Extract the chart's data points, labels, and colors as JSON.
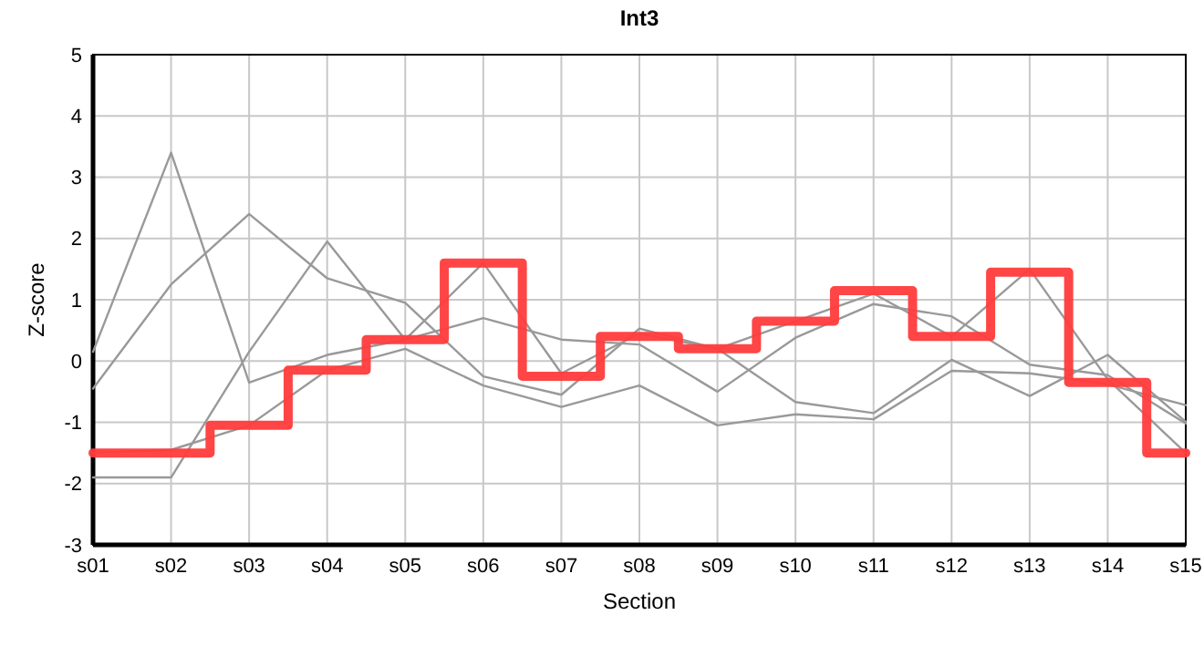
{
  "chart_data": {
    "type": "line",
    "title": "Int3",
    "xlabel": "Section",
    "ylabel": "Z-score",
    "categories": [
      "s01",
      "s02",
      "s03",
      "s04",
      "s05",
      "s06",
      "s07",
      "s08",
      "s09",
      "s10",
      "s11",
      "s12",
      "s13",
      "s14",
      "s15"
    ],
    "series": [
      {
        "color": "#999999",
        "values": [
          0.15,
          3.4,
          -0.35,
          0.1,
          0.35,
          0.7,
          0.35,
          0.27,
          -0.5,
          0.38,
          0.93,
          0.73,
          -0.06,
          -0.23,
          -1.02
        ]
      },
      {
        "color": "#999999",
        "values": [
          -0.45,
          1.25,
          2.4,
          1.35,
          0.95,
          -0.25,
          -0.55,
          0.53,
          0.2,
          -0.67,
          -0.85,
          0.02,
          -0.57,
          0.1,
          -0.99
        ]
      },
      {
        "color": "#999999",
        "values": [
          -1.9,
          -1.9,
          0.15,
          1.95,
          0.35,
          1.6,
          -0.2,
          0.45,
          0.2,
          0.65,
          1.1,
          0.4,
          1.5,
          -0.3,
          -1.5
        ]
      },
      {
        "color": "#999999",
        "values": [
          -1.5,
          -1.45,
          -1.05,
          -0.15,
          0.2,
          -0.4,
          -0.75,
          -0.4,
          -1.05,
          -0.87,
          -0.95,
          -0.16,
          -0.2,
          -0.38,
          -0.72
        ]
      },
      {
        "type": "step",
        "color": "#ff3b3b",
        "values": [
          -1.5,
          -1.5,
          -1.05,
          -0.15,
          0.35,
          1.6,
          -0.25,
          0.4,
          0.2,
          0.65,
          1.15,
          0.4,
          1.45,
          -0.35,
          -1.5
        ]
      }
    ],
    "ylim": [
      -3,
      5
    ],
    "yticks": [
      -3,
      -2,
      -1,
      0,
      1,
      2,
      3,
      4,
      5
    ],
    "grid": true,
    "marker": "none",
    "line_style": "solid"
  }
}
